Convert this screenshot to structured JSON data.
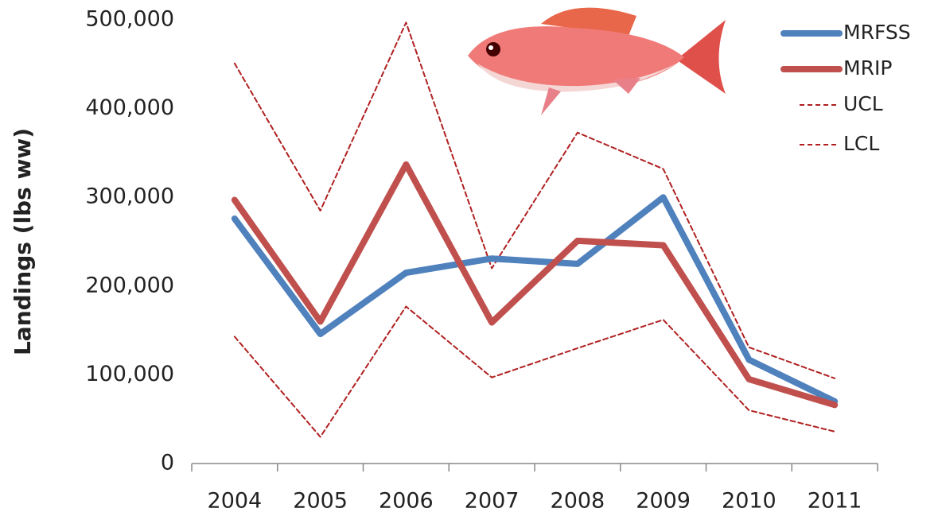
{
  "chart_data": {
    "type": "line",
    "y_label": "Landings (lbs ww)",
    "categories": [
      "2004",
      "2005",
      "2006",
      "2007",
      "2008",
      "2009",
      "2010",
      "2011"
    ],
    "series": [
      {
        "name": "MRFSS",
        "color": "#4f81bd",
        "dashed": false,
        "values": [
          276000,
          146000,
          215000,
          231000,
          225000,
          300000,
          117000,
          70000
        ]
      },
      {
        "name": "MRIP",
        "color": "#c0504d",
        "dashed": false,
        "values": [
          297000,
          160000,
          337000,
          159000,
          251000,
          246000,
          95000,
          66000
        ]
      },
      {
        "name": "UCL",
        "color": "#b02020",
        "dashed": true,
        "values": [
          451000,
          285000,
          497000,
          220000,
          373000,
          332000,
          131000,
          96000
        ]
      },
      {
        "name": "LCL",
        "color": "#b02020",
        "dashed": true,
        "values": [
          143000,
          30000,
          177000,
          97000,
          130000,
          162000,
          60000,
          36000
        ]
      }
    ],
    "ylim": [
      0,
      500000
    ],
    "yticks": [
      0,
      {
        "value": 100000,
        "label": "100,000"
      },
      {
        "value": 200000,
        "label": "200,000"
      },
      {
        "value": 300000,
        "label": "300,000"
      },
      {
        "value": 400000,
        "label": "400,000"
      },
      {
        "value": 500000,
        "label": "500,000"
      }
    ],
    "grid": false
  }
}
